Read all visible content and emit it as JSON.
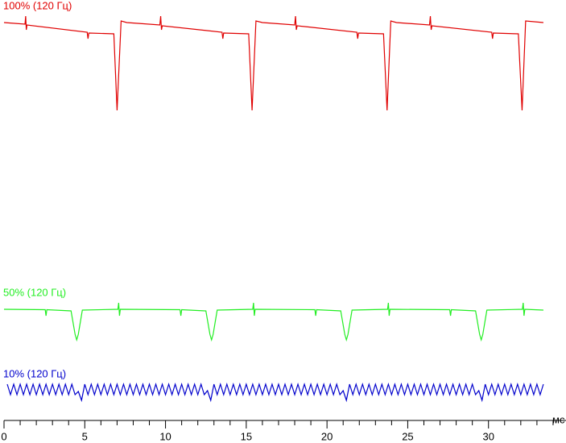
{
  "chart_data": {
    "type": "line",
    "xlabel": "мс",
    "xlim": [
      0,
      34.8
    ],
    "xticks": [
      0,
      5,
      10,
      15,
      20,
      25,
      30
    ],
    "xminorticks": [
      1,
      2,
      3,
      4,
      6,
      7,
      8,
      9,
      11,
      12,
      13,
      14,
      16,
      17,
      18,
      19,
      21,
      22,
      23,
      24,
      26,
      27,
      28,
      29,
      31,
      32,
      33,
      34
    ],
    "ylim": [
      0,
      100
    ],
    "series": [
      {
        "name": "100% (120 Гц)",
        "color": "#e00000",
        "x": [
          0,
          1.3,
          1.34,
          1.38,
          1.42,
          5.15,
          5.2,
          5.25,
          6.8,
          7.0,
          7.25,
          7.6,
          9.65,
          9.7,
          9.75,
          9.8,
          13.5,
          13.55,
          13.6,
          15.15,
          15.36,
          15.6,
          16.0,
          18.0,
          18.05,
          18.1,
          18.15,
          21.85,
          21.9,
          21.95,
          23.5,
          23.72,
          23.95,
          24.3,
          26.35,
          26.4,
          26.45,
          26.5,
          30.2,
          30.25,
          30.3,
          31.85,
          32.08,
          32.3,
          33.4
        ],
        "values": [
          98.4,
          98.0,
          100,
          96.6,
          97.8,
          96.0,
          94.4,
          95.8,
          95.6,
          76.6,
          98.8,
          98.4,
          97.8,
          100,
          96.6,
          97.6,
          96.0,
          94.4,
          95.8,
          95.6,
          76.6,
          98.8,
          98.4,
          97.8,
          100,
          96.6,
          97.6,
          96.0,
          94.4,
          95.8,
          95.6,
          76.6,
          98.8,
          98.4,
          97.8,
          100,
          96.6,
          97.6,
          96.0,
          94.4,
          95.8,
          95.6,
          76.6,
          98.8,
          98.4
        ]
      },
      {
        "name": "50% (120 Гц)",
        "color": "#22ee22",
        "x": [
          0,
          2.55,
          2.6,
          2.65,
          4.15,
          4.4,
          4.5,
          4.6,
          4.85,
          7.05,
          7.1,
          7.15,
          7.2,
          10.9,
          10.95,
          11.0,
          12.5,
          12.75,
          12.85,
          12.95,
          13.2,
          15.4,
          15.45,
          15.5,
          15.55,
          19.25,
          19.3,
          19.35,
          20.85,
          21.1,
          21.2,
          21.3,
          21.55,
          23.75,
          23.8,
          23.85,
          23.9,
          27.6,
          27.65,
          27.7,
          29.2,
          29.45,
          29.55,
          29.65,
          29.9,
          32.1,
          32.15,
          32.2,
          32.25,
          33.4
        ],
        "values": [
          27.2,
          27.1,
          25.6,
          27.1,
          26.8,
          21,
          19.6,
          21,
          27,
          27.2,
          28.8,
          25.6,
          27.2,
          27.1,
          25.6,
          27.1,
          26.8,
          21,
          19.6,
          21,
          27,
          27.2,
          28.8,
          25.6,
          27.2,
          27.1,
          25.6,
          27.1,
          26.8,
          21,
          19.6,
          21,
          27,
          27.2,
          28.8,
          25.6,
          27.2,
          27.1,
          25.6,
          27.1,
          26.8,
          21,
          19.6,
          21,
          27,
          27.2,
          28.8,
          25.6,
          27.2,
          27
        ]
      },
      {
        "name": "10% (120 Гц)",
        "color": "#0000cc",
        "x": [
          0.2,
          0.4,
          0.6,
          0.8,
          1,
          1.2,
          1.4,
          1.6,
          1.8,
          2,
          2.2,
          2.4,
          2.6,
          2.8,
          3,
          3.2,
          3.4,
          3.6,
          3.8,
          4,
          4.2,
          4.4,
          4.6,
          4.8,
          5,
          5.2,
          5.4,
          5.6,
          5.8,
          6,
          6.2,
          6.4,
          6.6,
          6.8,
          7,
          7.2,
          7.4,
          7.6,
          7.8,
          8,
          8.2,
          8.4,
          8.6,
          8.8,
          9,
          9.2,
          9.4,
          9.6,
          9.8,
          10,
          10.2,
          10.4,
          10.6,
          10.8,
          11,
          11.2,
          11.4,
          11.6,
          11.8,
          12,
          12.2,
          12.4,
          12.6,
          12.8,
          13,
          13.2,
          13.4,
          13.6,
          13.8,
          14,
          14.2,
          14.4,
          14.6,
          14.8,
          15,
          15.2,
          15.4,
          15.6,
          15.8,
          16,
          16.2,
          16.4,
          16.6,
          16.8,
          17,
          17.2,
          17.4,
          17.6,
          17.8,
          18,
          18.2,
          18.4,
          18.6,
          18.8,
          19,
          19.2,
          19.4,
          19.6,
          19.8,
          20,
          20.2,
          20.4,
          20.6,
          20.8,
          21,
          21.2,
          21.4,
          21.6,
          21.8,
          22,
          22.2,
          22.4,
          22.6,
          22.8,
          23,
          23.2,
          23.4,
          23.6,
          23.8,
          24,
          24.2,
          24.4,
          24.6,
          24.8,
          25,
          25.2,
          25.4,
          25.6,
          25.8,
          26,
          26.2,
          26.4,
          26.6,
          26.8,
          27,
          27.2,
          27.4,
          27.6,
          27.8,
          28,
          28.2,
          28.4,
          28.6,
          28.8,
          29,
          29.2,
          29.4,
          29.6,
          29.8,
          30,
          30.2,
          30.4,
          30.6,
          30.8,
          31,
          31.2,
          31.4,
          31.6,
          31.8,
          32,
          32.2,
          32.4,
          32.6,
          32.8,
          33,
          33.2,
          33.4
        ],
        "values": [
          8.6,
          6,
          8.6,
          6,
          8.6,
          6,
          8.6,
          6,
          8.6,
          6,
          8.6,
          6,
          8.6,
          6,
          8.6,
          6,
          8.6,
          6,
          8.6,
          6,
          8.6,
          6,
          6.8,
          4.6,
          8.6,
          6,
          8.6,
          6,
          8.6,
          6,
          8.6,
          6,
          8.6,
          6,
          8.6,
          6,
          8.6,
          6,
          8.6,
          6,
          8.6,
          6,
          8.6,
          6,
          8.6,
          6,
          8.6,
          6,
          8.6,
          6,
          8.6,
          6,
          8.6,
          6,
          8.6,
          6,
          8.6,
          6,
          8.6,
          6,
          8.6,
          6,
          7,
          4.6,
          8.6,
          6,
          8.6,
          6,
          8.6,
          6,
          8.6,
          6,
          8.6,
          6,
          8.6,
          6,
          8.6,
          6,
          8.6,
          6,
          8.6,
          6,
          8.6,
          6,
          8.6,
          6,
          8.6,
          6,
          8.6,
          6,
          8.6,
          6,
          8.6,
          6,
          8.6,
          6,
          8.6,
          6,
          8.6,
          6,
          8.6,
          6,
          8.6,
          6,
          7,
          4.6,
          8.6,
          6,
          8.6,
          6,
          8.6,
          6,
          8.6,
          6,
          8.6,
          6,
          8.6,
          6,
          8.6,
          6,
          8.6,
          6,
          8.6,
          6,
          8.6,
          6,
          8.6,
          6,
          8.6,
          6,
          8.6,
          6,
          8.6,
          6,
          8.6,
          6,
          8.6,
          6,
          8.6,
          6,
          8.6,
          6,
          8.6,
          6,
          8.6,
          6,
          7,
          4.6,
          8.6,
          6,
          8.6,
          6,
          8.6,
          6,
          8.6,
          6,
          8.6,
          6,
          8.6,
          6,
          8.6,
          6,
          8.6,
          6,
          8.6,
          6,
          8.6
        ]
      }
    ]
  }
}
